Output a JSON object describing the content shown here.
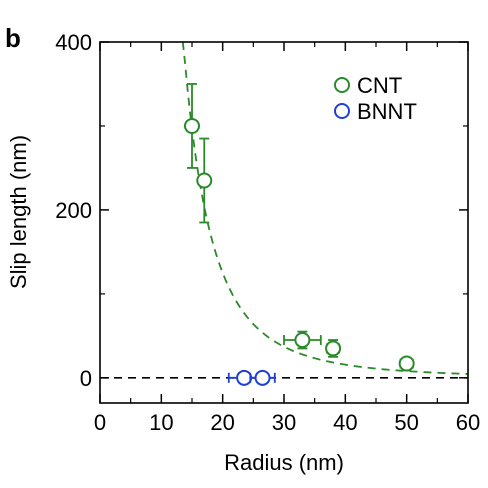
{
  "panel_label": "b",
  "chart_data": {
    "type": "scatter",
    "xlabel": "Radius (nm)",
    "ylabel": "Slip length (nm)",
    "xlim": [
      0,
      60
    ],
    "ylim": [
      -30,
      400
    ],
    "xticks": [
      0,
      10,
      20,
      30,
      40,
      50,
      60
    ],
    "yticks": [
      0,
      200,
      400
    ],
    "grid": false,
    "legend": {
      "position": "top-right"
    },
    "series": [
      {
        "name": "CNT",
        "color": "#2a8a2a",
        "marker": "open-circle",
        "points": [
          {
            "x": 15.0,
            "y": 300,
            "xerr": 0.8,
            "yerr": 50
          },
          {
            "x": 17.0,
            "y": 235,
            "xerr": 0.8,
            "yerr": 50
          },
          {
            "x": 33.0,
            "y": 45,
            "xerr": 3.0,
            "yerr": 10
          },
          {
            "x": 38.0,
            "y": 35,
            "xerr": 1.0,
            "yerr": 10
          },
          {
            "x": 50.0,
            "y": 17,
            "xerr": 1.0,
            "yerr": 5
          }
        ]
      },
      {
        "name": "BNNT",
        "color": "#1f3fd6",
        "marker": "open-circle",
        "points": [
          {
            "x": 23.5,
            "y": 0,
            "xerr": 2.5,
            "yerr": 3
          },
          {
            "x": 26.5,
            "y": 0,
            "xerr": 2.0,
            "yerr": 3
          }
        ]
      }
    ],
    "fit_curve": {
      "style": "dashed",
      "color": "#2a8a2a",
      "formula": "b = C / R^3",
      "C": 1000000,
      "x_range": [
        13.5,
        60
      ]
    },
    "reference_line": {
      "y": 0,
      "style": "dashed",
      "color": "#000000"
    }
  }
}
